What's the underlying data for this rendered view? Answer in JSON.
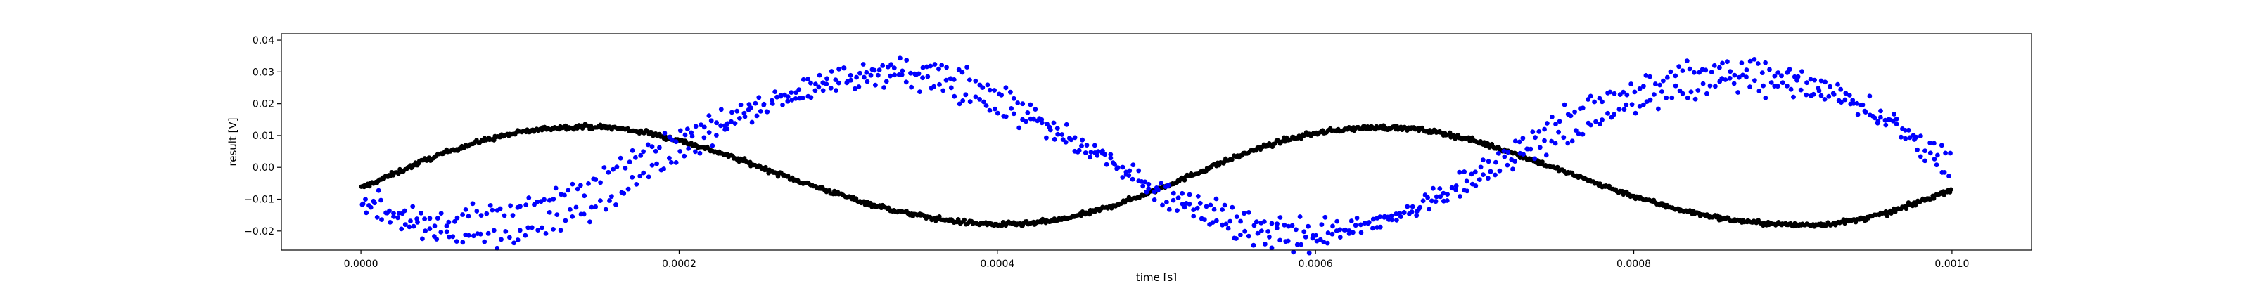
{
  "chart_data": {
    "type": "scatter",
    "title": "",
    "xlabel": "time [s]",
    "ylabel": "result [V]",
    "xlim": [
      -5e-05,
      0.00105
    ],
    "ylim": [
      -0.026,
      0.042
    ],
    "x_ticks": [
      0.0,
      0.0002,
      0.0004,
      0.0006,
      0.0008,
      0.001
    ],
    "x_tick_labels": [
      "0.0000",
      "0.0002",
      "0.0004",
      "0.0006",
      "0.0008",
      "0.0010"
    ],
    "y_ticks": [
      -0.02,
      -0.01,
      0.0,
      0.01,
      0.02,
      0.03,
      0.04
    ],
    "y_tick_labels": [
      "−0.02",
      "−0.01",
      "0.00",
      "0.01",
      "0.02",
      "0.03",
      "0.04"
    ],
    "grid": false,
    "legend": "none",
    "series": [
      {
        "color": "#000000",
        "x": [
          0.0,
          2e-05,
          4e-05,
          6e-05,
          8e-05,
          0.0001,
          0.00012,
          0.00014,
          0.00016,
          0.00018,
          0.0002,
          0.00022,
          0.00024,
          0.00026,
          0.00028,
          0.0003,
          0.00032,
          0.00034,
          0.00036,
          0.00038,
          0.0004,
          0.00042,
          0.00044,
          0.00046,
          0.00048,
          0.0005,
          0.00052,
          0.00054,
          0.00056,
          0.00058,
          0.0006,
          0.00062,
          0.00064,
          0.00066,
          0.00068,
          0.0007,
          0.00072,
          0.00074,
          0.00076,
          0.00078,
          0.0008,
          0.00082,
          0.00084,
          0.00086,
          0.00088,
          0.0009,
          0.00092,
          0.00094,
          0.00096,
          0.00098,
          0.001
        ],
        "y": [
          -0.0065,
          -0.0022,
          0.0022,
          0.0059,
          0.0089,
          0.011,
          0.0124,
          0.0129,
          0.0124,
          0.0109,
          0.0085,
          0.0055,
          0.0021,
          -0.0016,
          -0.0051,
          -0.0084,
          -0.0115,
          -0.0141,
          -0.016,
          -0.0173,
          -0.018,
          -0.0177,
          -0.0164,
          -0.014,
          -0.0108,
          -0.007,
          -0.0029,
          0.0013,
          0.0052,
          0.0085,
          0.0108,
          0.0121,
          0.0126,
          0.0122,
          0.0108,
          0.0084,
          0.0052,
          0.0017,
          -0.002,
          -0.0056,
          -0.009,
          -0.0121,
          -0.0146,
          -0.0164,
          -0.0175,
          -0.0181,
          -0.0179,
          -0.0166,
          -0.0143,
          -0.0108,
          -0.0068
        ]
      },
      {
        "color": "#0000ff",
        "x": [
          0.0,
          2e-05,
          4e-05,
          6e-05,
          8e-05,
          0.0001,
          0.00012,
          0.00014,
          0.00016,
          0.00018,
          0.0002,
          0.00022,
          0.00024,
          0.00026,
          0.00028,
          0.0003,
          0.00032,
          0.00034,
          0.00036,
          0.00038,
          0.0004,
          0.00042,
          0.00044,
          0.00046,
          0.00048,
          0.0005,
          0.00052,
          0.00054,
          0.00056,
          0.00058,
          0.0006,
          0.00062,
          0.00064,
          0.00066,
          0.00068,
          0.0007,
          0.00072,
          0.00074,
          0.00076,
          0.00078,
          0.0008,
          0.00082,
          0.00084,
          0.00086,
          0.00088,
          0.0009,
          0.00092,
          0.00094,
          0.00096,
          0.00098,
          0.001
        ],
        "y": [
          -0.0095,
          -0.0135,
          -0.0155,
          -0.016,
          -0.015,
          -0.0128,
          -0.0093,
          -0.005,
          -0.0002,
          0.0048,
          0.0096,
          0.0142,
          0.0185,
          0.0222,
          0.0252,
          0.0273,
          0.028,
          0.0275,
          0.0258,
          0.023,
          0.0193,
          0.0148,
          0.0099,
          0.0047,
          -0.0005,
          -0.0053,
          -0.0096,
          -0.0134,
          -0.0163,
          -0.0182,
          -0.019,
          -0.0186,
          -0.017,
          -0.0142,
          -0.0102,
          -0.0055,
          -0.0003,
          0.005,
          0.0101,
          0.0148,
          0.0188,
          0.022,
          0.0243,
          0.0257,
          0.0261,
          0.0254,
          0.0233,
          0.0198,
          0.0151,
          0.0093,
          0.0025
        ]
      },
      {
        "color": "#0000ff",
        "x": [
          0.0,
          2e-05,
          4e-05,
          6e-05,
          8e-05,
          0.0001,
          0.00012,
          0.00014,
          0.00016,
          0.00018,
          0.0002,
          0.00022,
          0.00024,
          0.00026,
          0.00028,
          0.0003,
          0.00032,
          0.00034,
          0.00036,
          0.00038,
          0.0004,
          0.00042,
          0.00044,
          0.00046,
          0.00048,
          0.0005,
          0.00052,
          0.00054,
          0.00056,
          0.00058,
          0.0006,
          0.00062,
          0.00064,
          0.00066,
          0.00068,
          0.0007,
          0.00072,
          0.00074,
          0.00076,
          0.00078,
          0.0008,
          0.00082,
          0.00084,
          0.00086,
          0.00088,
          0.0009,
          0.00092,
          0.00094,
          0.00096,
          0.00098,
          0.001
        ],
        "y": [
          -0.012,
          -0.0175,
          -0.0205,
          -0.0222,
          -0.0225,
          -0.0213,
          -0.0185,
          -0.0142,
          -0.0088,
          -0.0025,
          0.004,
          0.0102,
          0.016,
          0.021,
          0.0252,
          0.0283,
          0.0305,
          0.0317,
          0.031,
          0.0285,
          0.0243,
          0.0186,
          0.012,
          0.005,
          -0.002,
          -0.0085,
          -0.014,
          -0.0185,
          -0.0215,
          -0.023,
          -0.0228,
          -0.021,
          -0.0178,
          -0.0132,
          -0.0077,
          -0.0015,
          0.005,
          0.0113,
          0.017,
          0.022,
          0.026,
          0.029,
          0.0308,
          0.0315,
          0.031,
          0.029,
          0.0255,
          0.0205,
          0.014,
          0.0062,
          -0.0025
        ]
      }
    ]
  }
}
